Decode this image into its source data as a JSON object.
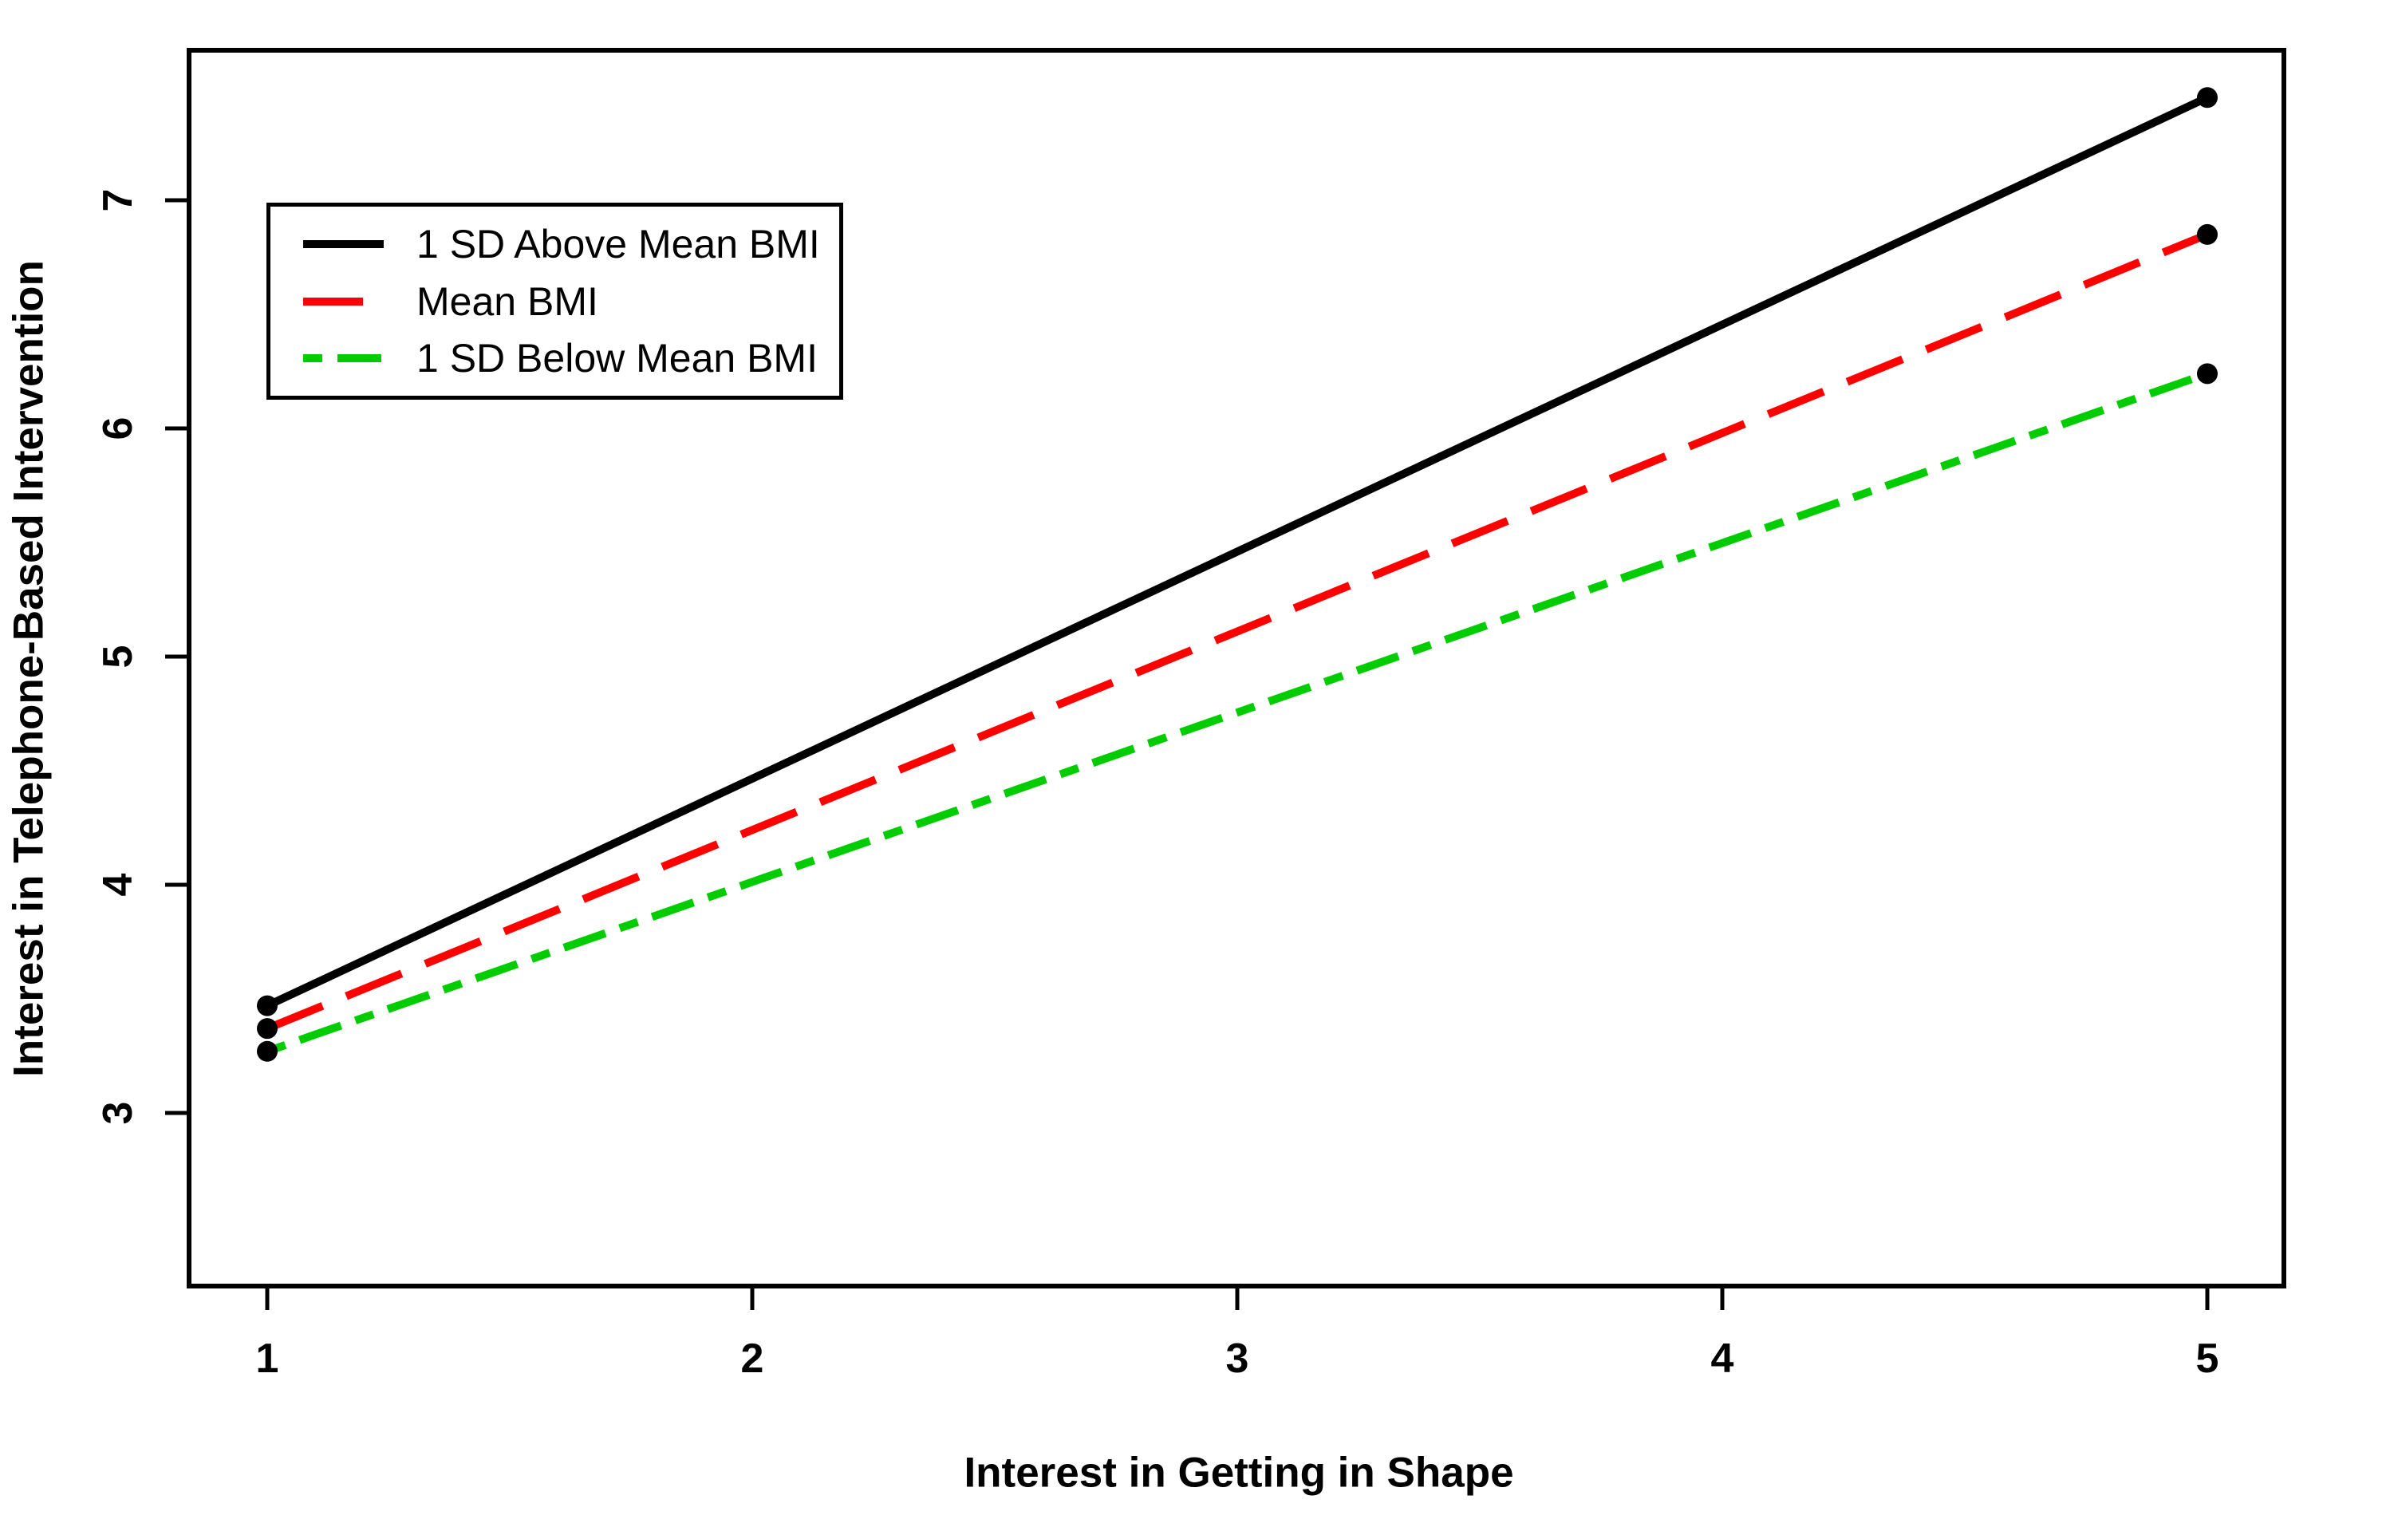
{
  "figure": {
    "background": "#ffffff"
  },
  "chart_data": {
    "type": "line",
    "title": "",
    "xlabel": "Interest in Getting in Shape",
    "ylabel": "Interest in Telephone-Based Intervention",
    "xticks": [
      "1",
      "2",
      "3",
      "4",
      "5"
    ],
    "yticks": [
      "3",
      "4",
      "5",
      "6",
      "7"
    ],
    "xlim": [
      0.84,
      5.16
    ],
    "ylim": [
      2.24,
      7.66
    ],
    "grid": false,
    "marker": {
      "shape": "filled-circle",
      "color": "#000000",
      "radius_px": 13
    },
    "series": [
      {
        "name": "1 SD Above Mean BMI",
        "color": "#000000",
        "linestyle": "solid",
        "points": [
          [
            1,
            3.47
          ],
          [
            5,
            7.45
          ]
        ]
      },
      {
        "name": "Mean BMI",
        "color": "#FF0000",
        "linestyle": "dashed",
        "points": [
          [
            1,
            3.37
          ],
          [
            5,
            6.85
          ]
        ]
      },
      {
        "name": "1 SD Below Mean BMI",
        "color": "#00CC00",
        "linestyle": "dotdash",
        "points": [
          [
            1,
            3.27
          ],
          [
            5,
            6.24
          ]
        ]
      }
    ],
    "legend": {
      "position": "top-left",
      "border": true
    }
  }
}
